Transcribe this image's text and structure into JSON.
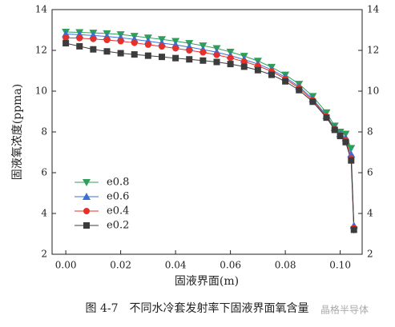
{
  "chart_data": {
    "type": "line",
    "xlabel": "固液界面(m)",
    "ylabel": "固液氧浓度(ppma)",
    "caption": "图 4-7　不同水冷套发射率下固液界面氧含量",
    "watermark": "晶格半导体",
    "x": [
      0,
      0.005,
      0.01,
      0.015,
      0.02,
      0.025,
      0.03,
      0.035,
      0.04,
      0.045,
      0.05,
      0.055,
      0.06,
      0.065,
      0.07,
      0.075,
      0.08,
      0.085,
      0.09,
      0.095,
      0.098,
      0.1,
      0.102,
      0.104,
      0.105
    ],
    "series": [
      {
        "name": "e0.8",
        "color": "#2f9e5a",
        "marker": "triangle-down",
        "values": [
          12.9,
          12.88,
          12.86,
          12.83,
          12.78,
          12.7,
          12.62,
          12.54,
          12.45,
          12.35,
          12.23,
          12.1,
          11.92,
          11.72,
          11.48,
          11.18,
          10.8,
          10.35,
          9.75,
          8.95,
          8.3,
          8.0,
          7.9,
          7.2,
          3.2
        ]
      },
      {
        "name": "e0.6",
        "color": "#3b6fd6",
        "marker": "triangle-up",
        "values": [
          12.8,
          12.77,
          12.73,
          12.68,
          12.62,
          12.54,
          12.45,
          12.36,
          12.27,
          12.16,
          12.04,
          11.91,
          11.74,
          11.55,
          11.33,
          11.05,
          10.68,
          10.22,
          9.62,
          8.8,
          8.2,
          7.9,
          7.7,
          6.9,
          3.4
        ]
      },
      {
        "name": "e0.4",
        "color": "#e8302a",
        "marker": "circle",
        "values": [
          12.62,
          12.6,
          12.56,
          12.51,
          12.45,
          12.37,
          12.28,
          12.19,
          12.1,
          12.0,
          11.9,
          11.78,
          11.63,
          11.45,
          11.24,
          10.97,
          10.6,
          10.15,
          9.55,
          8.75,
          8.15,
          7.85,
          7.6,
          6.7,
          3.3
        ]
      },
      {
        "name": "e0.2",
        "color": "#3c3c3c",
        "marker": "square",
        "values": [
          12.35,
          12.2,
          12.05,
          11.95,
          11.86,
          11.8,
          11.74,
          11.68,
          11.62,
          11.56,
          11.5,
          11.43,
          11.33,
          11.2,
          11.03,
          10.8,
          10.48,
          10.05,
          9.48,
          8.7,
          8.1,
          7.8,
          7.5,
          6.6,
          3.2
        ]
      }
    ],
    "xlim": [
      -0.005,
      0.108
    ],
    "xticks": [
      {
        "value": 0,
        "label": "0.00"
      },
      0.02,
      0.04,
      0.06,
      0.08,
      {
        "value": 0.1,
        "label": "0.10"
      }
    ],
    "ylim": [
      2,
      14
    ],
    "yticks": [
      2,
      4,
      6,
      8,
      10,
      12,
      14
    ],
    "y2lim": [
      2,
      14
    ],
    "y2ticks": [
      2,
      4,
      6,
      8,
      10,
      12,
      14
    ],
    "legend": "lower left"
  }
}
